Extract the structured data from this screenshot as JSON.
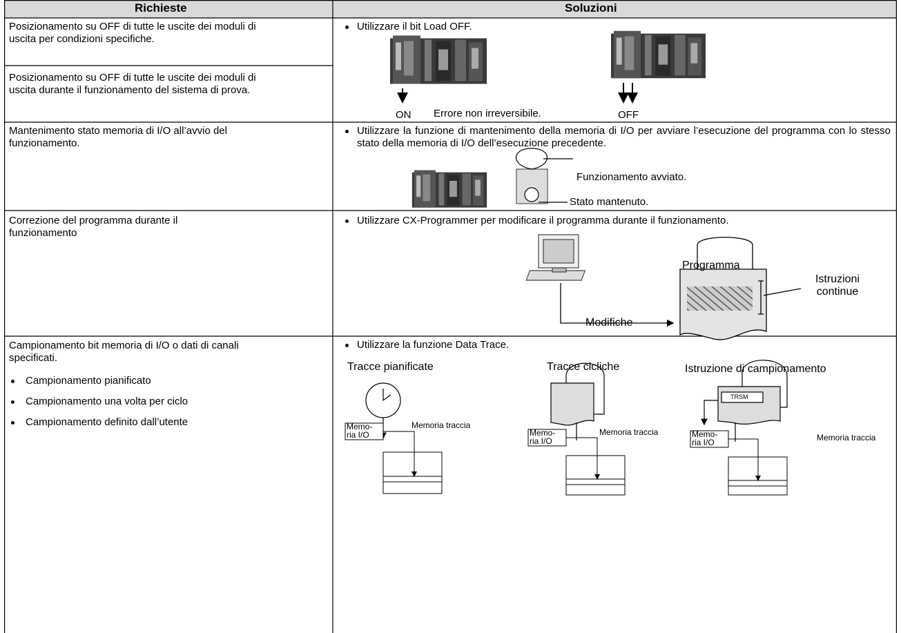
{
  "header": {
    "requests": "Richieste",
    "solutions": "Soluzioni"
  },
  "rows": [
    {
      "requests": [
        "Posizionamento su OFF di tutte le uscite dei moduli di uscita per condizioni specifiche.",
        "Posizionamento su OFF di tutte le uscite dei moduli di uscita durante il funzionamento del sistema di prova."
      ],
      "solution": "Utilizzare il bit Load OFF.",
      "figure": {
        "on": "ON",
        "note": "Errore non irreversibile.",
        "off": "OFF"
      }
    },
    {
      "requests": [
        "Mantenimento stato memoria di I/O all’avvio del funzionamento."
      ],
      "solution": "Utilizzare la funzione di mantenimento della memoria di I/O per avviare l’esecuzione del programma con lo stesso stato della memoria di I/O dell’esecuzione precedente.",
      "figure": {
        "started": "Funzionamento avviato.",
        "held": "Stato mantenuto."
      }
    },
    {
      "requests": [
        "Correzione del programma durante il funzionamento"
      ],
      "solution": "Utilizzare CX-Programmer per modificare il programma durante il funzionamento.",
      "figure": {
        "program": "Programma",
        "instructions": "Istruzioni continue",
        "changes": "Modifiche"
      }
    },
    {
      "requests": [
        "Campionamento bit memoria di I/O o dati di canali specificati."
      ],
      "request_items": [
        "Campionamento pianificato",
        "Campionamento una volta per ciclo",
        "Campionamento definito dall’utente"
      ],
      "solution": "Utilizzare la funzione Data Trace.",
      "figure": {
        "panels": [
          {
            "title": "Tracce pianificate",
            "memory": [
              "Memo-",
              "ria I/O"
            ],
            "trace": "Memoria traccia"
          },
          {
            "title": "Tracce cicliche",
            "memory": [
              "Memo-",
              "ria I/O"
            ],
            "trace": "Memoria traccia"
          },
          {
            "title": "Istruzione di campionamento",
            "memory": [
              "Memo-",
              "ria I/O"
            ],
            "trace": "Memoria traccia"
          }
        ],
        "instruction": "TRSM"
      }
    }
  ]
}
